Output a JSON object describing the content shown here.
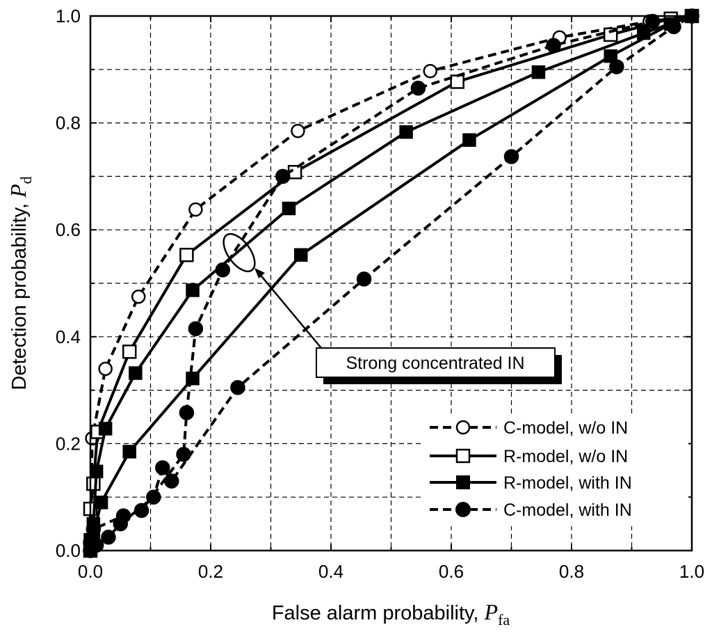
{
  "chart_data": {
    "type": "line",
    "xlabel": "False alarm probability, ",
    "xlabel_symbol": "P",
    "xlabel_sub": "fa",
    "ylabel": "Detection probability, ",
    "ylabel_symbol": "P",
    "ylabel_sub": "d",
    "xlim": [
      0.0,
      1.0
    ],
    "ylim": [
      0.0,
      1.0
    ],
    "x_ticks": [
      "0.0",
      "0.2",
      "0.4",
      "0.6",
      "0.8",
      "1.0"
    ],
    "y_ticks": [
      "0.0",
      "0.2",
      "0.4",
      "0.6",
      "0.8",
      "1.0"
    ],
    "grid": true,
    "legend_position": "bottom-right",
    "annotation": "Strong concentrated IN",
    "series": [
      {
        "name": "C-model, w/o IN",
        "line": "dashed",
        "marker": "circle-open",
        "points": [
          [
            0.0,
            0.0
          ],
          [
            0.003,
            0.21
          ],
          [
            0.025,
            0.34
          ],
          [
            0.08,
            0.475
          ],
          [
            0.175,
            0.638
          ],
          [
            0.345,
            0.785
          ],
          [
            0.565,
            0.897
          ],
          [
            0.78,
            0.96
          ],
          [
            0.93,
            0.99
          ],
          [
            1.0,
            1.0
          ]
        ]
      },
      {
        "name": "R-model, w/o IN",
        "line": "solid",
        "marker": "square-open",
        "points": [
          [
            0.0,
            0.0
          ],
          [
            0.0,
            0.078
          ],
          [
            0.005,
            0.125
          ],
          [
            0.012,
            0.222
          ],
          [
            0.065,
            0.372
          ],
          [
            0.16,
            0.553
          ],
          [
            0.34,
            0.708
          ],
          [
            0.61,
            0.877
          ],
          [
            0.865,
            0.965
          ],
          [
            0.965,
            0.995
          ],
          [
            1.0,
            1.0
          ]
        ]
      },
      {
        "name": "R-model, with IN",
        "line": "solid",
        "marker": "square-filled",
        "points": [
          [
            0.0,
            0.0
          ],
          [
            0.0,
            0.02
          ],
          [
            0.005,
            0.05
          ],
          [
            0.01,
            0.148
          ],
          [
            0.025,
            0.228
          ],
          [
            0.075,
            0.332
          ],
          [
            0.17,
            0.487
          ],
          [
            0.33,
            0.64
          ],
          [
            0.525,
            0.783
          ],
          [
            0.745,
            0.895
          ],
          [
            0.92,
            0.968
          ],
          [
            1.0,
            1.0
          ]
        ]
      },
      {
        "name": "R-model, with IN",
        "line": "solid",
        "marker": "square-filled",
        "points": [
          [
            0.0,
            0.0
          ],
          [
            0.0,
            0.01
          ],
          [
            0.005,
            0.03
          ],
          [
            0.018,
            0.09
          ],
          [
            0.065,
            0.185
          ],
          [
            0.17,
            0.322
          ],
          [
            0.35,
            0.553
          ],
          [
            0.63,
            0.768
          ],
          [
            0.865,
            0.925
          ],
          [
            0.965,
            0.985
          ],
          [
            1.0,
            1.0
          ]
        ]
      },
      {
        "name": "C-model, with IN",
        "line": "dashed",
        "marker": "circle-filled",
        "points": [
          [
            0.0,
            0.0
          ],
          [
            0.0,
            0.015
          ],
          [
            0.005,
            0.04
          ],
          [
            0.055,
            0.065
          ],
          [
            0.085,
            0.075
          ],
          [
            0.155,
            0.18
          ],
          [
            0.16,
            0.258
          ],
          [
            0.175,
            0.415
          ],
          [
            0.22,
            0.525
          ],
          [
            0.32,
            0.7
          ],
          [
            0.545,
            0.865
          ],
          [
            0.77,
            0.945
          ],
          [
            0.935,
            0.99
          ],
          [
            1.0,
            1.0
          ]
        ]
      },
      {
        "name": "C-model, with IN",
        "line": "dashed",
        "marker": "circle-filled",
        "points": [
          [
            0.0,
            0.0
          ],
          [
            0.01,
            0.01
          ],
          [
            0.03,
            0.025
          ],
          [
            0.05,
            0.05
          ],
          [
            0.105,
            0.1
          ],
          [
            0.12,
            0.155
          ],
          [
            0.135,
            0.13
          ],
          [
            0.245,
            0.305
          ],
          [
            0.455,
            0.508
          ],
          [
            0.7,
            0.737
          ],
          [
            0.875,
            0.905
          ],
          [
            0.97,
            0.98
          ],
          [
            1.0,
            1.0
          ]
        ]
      }
    ],
    "legend": [
      {
        "label": "C-model, w/o IN",
        "line": "dashed",
        "marker": "circle-open"
      },
      {
        "label": "R-model, w/o IN",
        "line": "solid",
        "marker": "square-open"
      },
      {
        "label": "R-model, with IN",
        "line": "solid",
        "marker": "square-filled"
      },
      {
        "label": "C-model, with IN",
        "line": "dashed",
        "marker": "circle-filled"
      }
    ]
  }
}
